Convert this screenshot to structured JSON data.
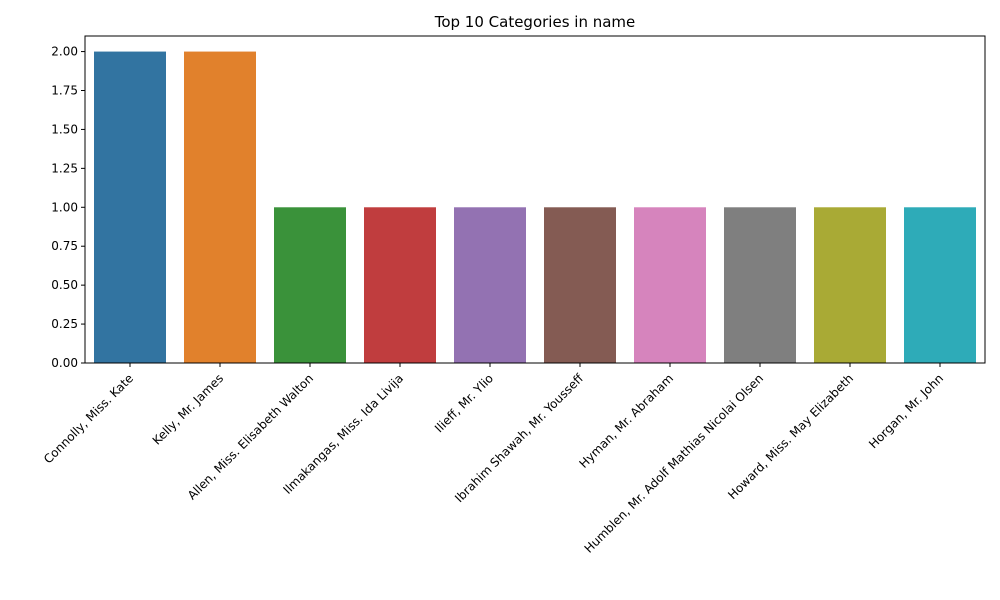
{
  "chart_data": {
    "type": "bar",
    "title": "Top 10 Categories in name",
    "xlabel": "",
    "ylabel": "",
    "ylim": [
      0,
      2.1
    ],
    "yticks": [
      "0.00",
      "0.25",
      "0.50",
      "0.75",
      "1.00",
      "1.25",
      "1.50",
      "1.75",
      "2.00"
    ],
    "grid": false,
    "legend": "none",
    "categories": [
      "Connolly, Miss. Kate",
      "Kelly, Mr. James",
      "Allen, Miss. Elisabeth Walton",
      "Ilmakangas, Miss. Ida Livija",
      "Ilieff, Mr. Ylio",
      "Ibrahim Shawah, Mr. Yousseff",
      "Hyman, Mr. Abraham",
      "Humblen, Mr. Adolf Mathias Nicolai Olsen",
      "Howard, Miss. May Elizabeth",
      "Horgan, Mr. John"
    ],
    "values": [
      2,
      2,
      1,
      1,
      1,
      1,
      1,
      1,
      1,
      1
    ],
    "colors": [
      "#3274a1",
      "#e1812c",
      "#3a923a",
      "#c03d3e",
      "#9372b2",
      "#845b53",
      "#d684bd",
      "#7f7f7f",
      "#a9aa35",
      "#2eabb8"
    ]
  }
}
